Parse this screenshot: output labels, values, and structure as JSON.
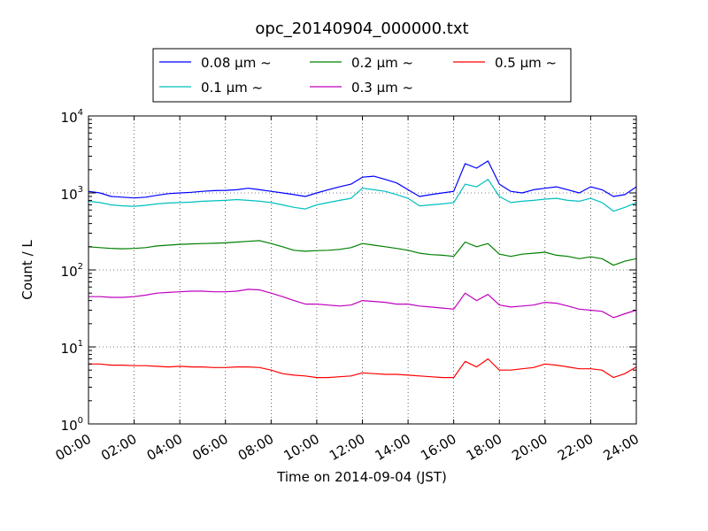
{
  "chart_data": {
    "type": "line",
    "title": "opc_20140904_000000.txt",
    "xlabel": "Time on 2014-09-04 (JST)",
    "ylabel": "Count / L",
    "x_ticks": [
      "00:00",
      "02:00",
      "04:00",
      "06:00",
      "08:00",
      "10:00",
      "12:00",
      "14:00",
      "16:00",
      "18:00",
      "20:00",
      "22:00",
      "24:00"
    ],
    "xlim_hours": [
      0,
      24
    ],
    "y_scale": "log",
    "ylim": [
      1,
      10000
    ],
    "y_ticks": [
      {
        "base": "10",
        "exp": "0"
      },
      {
        "base": "10",
        "exp": "1"
      },
      {
        "base": "10",
        "exp": "2"
      },
      {
        "base": "10",
        "exp": "3"
      },
      {
        "base": "10",
        "exp": "4"
      }
    ],
    "grid": true,
    "legend_position": "top-center",
    "x_hours": [
      0,
      0.5,
      1,
      1.5,
      2,
      2.5,
      3,
      3.5,
      4,
      4.5,
      5,
      5.5,
      6,
      6.5,
      7,
      7.5,
      8,
      8.5,
      9,
      9.5,
      10,
      10.5,
      11,
      11.5,
      12,
      12.5,
      13,
      13.5,
      14,
      14.5,
      15,
      15.5,
      16,
      16.5,
      17,
      17.5,
      18,
      18.5,
      19,
      19.5,
      20,
      20.5,
      21,
      21.5,
      22,
      22.5,
      23,
      23.5,
      24
    ],
    "series": [
      {
        "name": "0.08 μm ~",
        "color": "#0000ff",
        "values": [
          1050,
          1000,
          900,
          880,
          860,
          880,
          930,
          980,
          1000,
          1020,
          1050,
          1070,
          1080,
          1100,
          1150,
          1100,
          1050,
          1000,
          950,
          900,
          1000,
          1100,
          1200,
          1300,
          1600,
          1650,
          1500,
          1350,
          1100,
          900,
          950,
          1000,
          1050,
          2400,
          2100,
          2600,
          1300,
          1050,
          1000,
          1100,
          1150,
          1200,
          1100,
          1000,
          1200,
          1100,
          900,
          950,
          1200
        ]
      },
      {
        "name": "0.1 μm ~",
        "color": "#00bfbf",
        "values": [
          780,
          750,
          700,
          680,
          670,
          690,
          720,
          740,
          750,
          760,
          780,
          790,
          800,
          820,
          800,
          780,
          750,
          700,
          650,
          620,
          700,
          750,
          800,
          850,
          1150,
          1100,
          1050,
          950,
          850,
          680,
          700,
          720,
          750,
          1300,
          1200,
          1500,
          900,
          750,
          780,
          800,
          830,
          850,
          800,
          780,
          850,
          750,
          580,
          650,
          750
        ]
      },
      {
        "name": "0.2 μm ~",
        "color": "#008000",
        "values": [
          200,
          195,
          190,
          188,
          190,
          195,
          205,
          210,
          215,
          218,
          220,
          222,
          225,
          230,
          235,
          240,
          220,
          200,
          180,
          175,
          178,
          180,
          185,
          195,
          220,
          210,
          200,
          190,
          180,
          165,
          158,
          155,
          150,
          230,
          200,
          220,
          160,
          150,
          160,
          165,
          170,
          155,
          150,
          140,
          148,
          140,
          115,
          130,
          140
        ]
      },
      {
        "name": "0.3 μm ~",
        "color": "#bf00bf",
        "values": [
          45,
          45,
          44,
          44,
          45,
          47,
          50,
          51,
          52,
          53,
          53,
          52,
          52,
          53,
          56,
          55,
          50,
          45,
          40,
          36,
          36,
          35,
          34,
          35,
          40,
          39,
          38,
          36,
          36,
          34,
          33,
          32,
          31,
          50,
          40,
          48,
          35,
          33,
          34,
          35,
          38,
          37,
          34,
          31,
          30,
          29,
          24,
          27,
          30
        ]
      },
      {
        "name": "0.5 μm ~",
        "color": "#ff0000",
        "values": [
          6,
          6,
          5.8,
          5.8,
          5.7,
          5.7,
          5.6,
          5.5,
          5.6,
          5.5,
          5.5,
          5.4,
          5.4,
          5.5,
          5.5,
          5.4,
          5,
          4.5,
          4.3,
          4.2,
          4,
          4,
          4.1,
          4.2,
          4.6,
          4.5,
          4.4,
          4.4,
          4.3,
          4.2,
          4.1,
          4,
          4,
          6.5,
          5.5,
          7,
          5,
          5,
          5.2,
          5.4,
          6,
          5.8,
          5.5,
          5.2,
          5.2,
          5,
          4,
          4.5,
          5.5
        ]
      }
    ]
  }
}
